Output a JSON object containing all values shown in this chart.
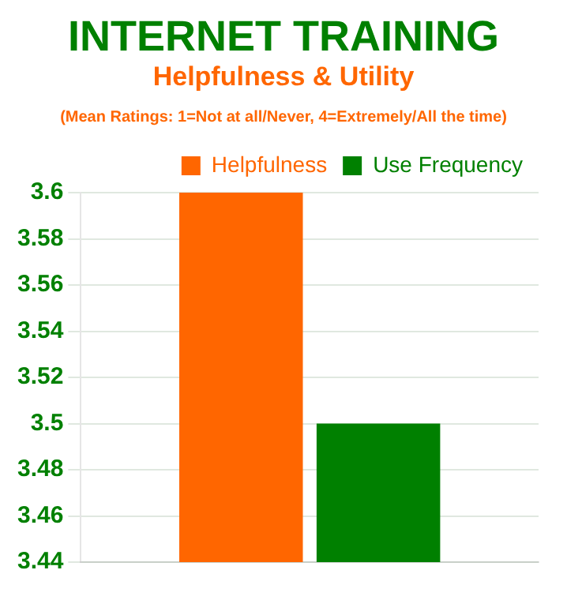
{
  "chart_data": {
    "type": "bar",
    "title": "INTERNET TRAINING",
    "subtitle": "Helpfulness & Utility",
    "annotations": [
      "(Mean Ratings: 1=Not at all/Never, 4=Extremely/All the time)"
    ],
    "categories": [
      null
    ],
    "series": [
      {
        "name": "Helpfulness",
        "color": "#ff6600",
        "values": [
          3.6
        ]
      },
      {
        "name": "Use Frequency",
        "color": "#008000",
        "values": [
          3.5
        ]
      }
    ],
    "ylim": [
      3.44,
      3.6
    ],
    "yticks": [
      3.44,
      3.46,
      3.48,
      3.5,
      3.52,
      3.54,
      3.56,
      3.58,
      3.6
    ],
    "grid": "y",
    "legend": "top right"
  }
}
